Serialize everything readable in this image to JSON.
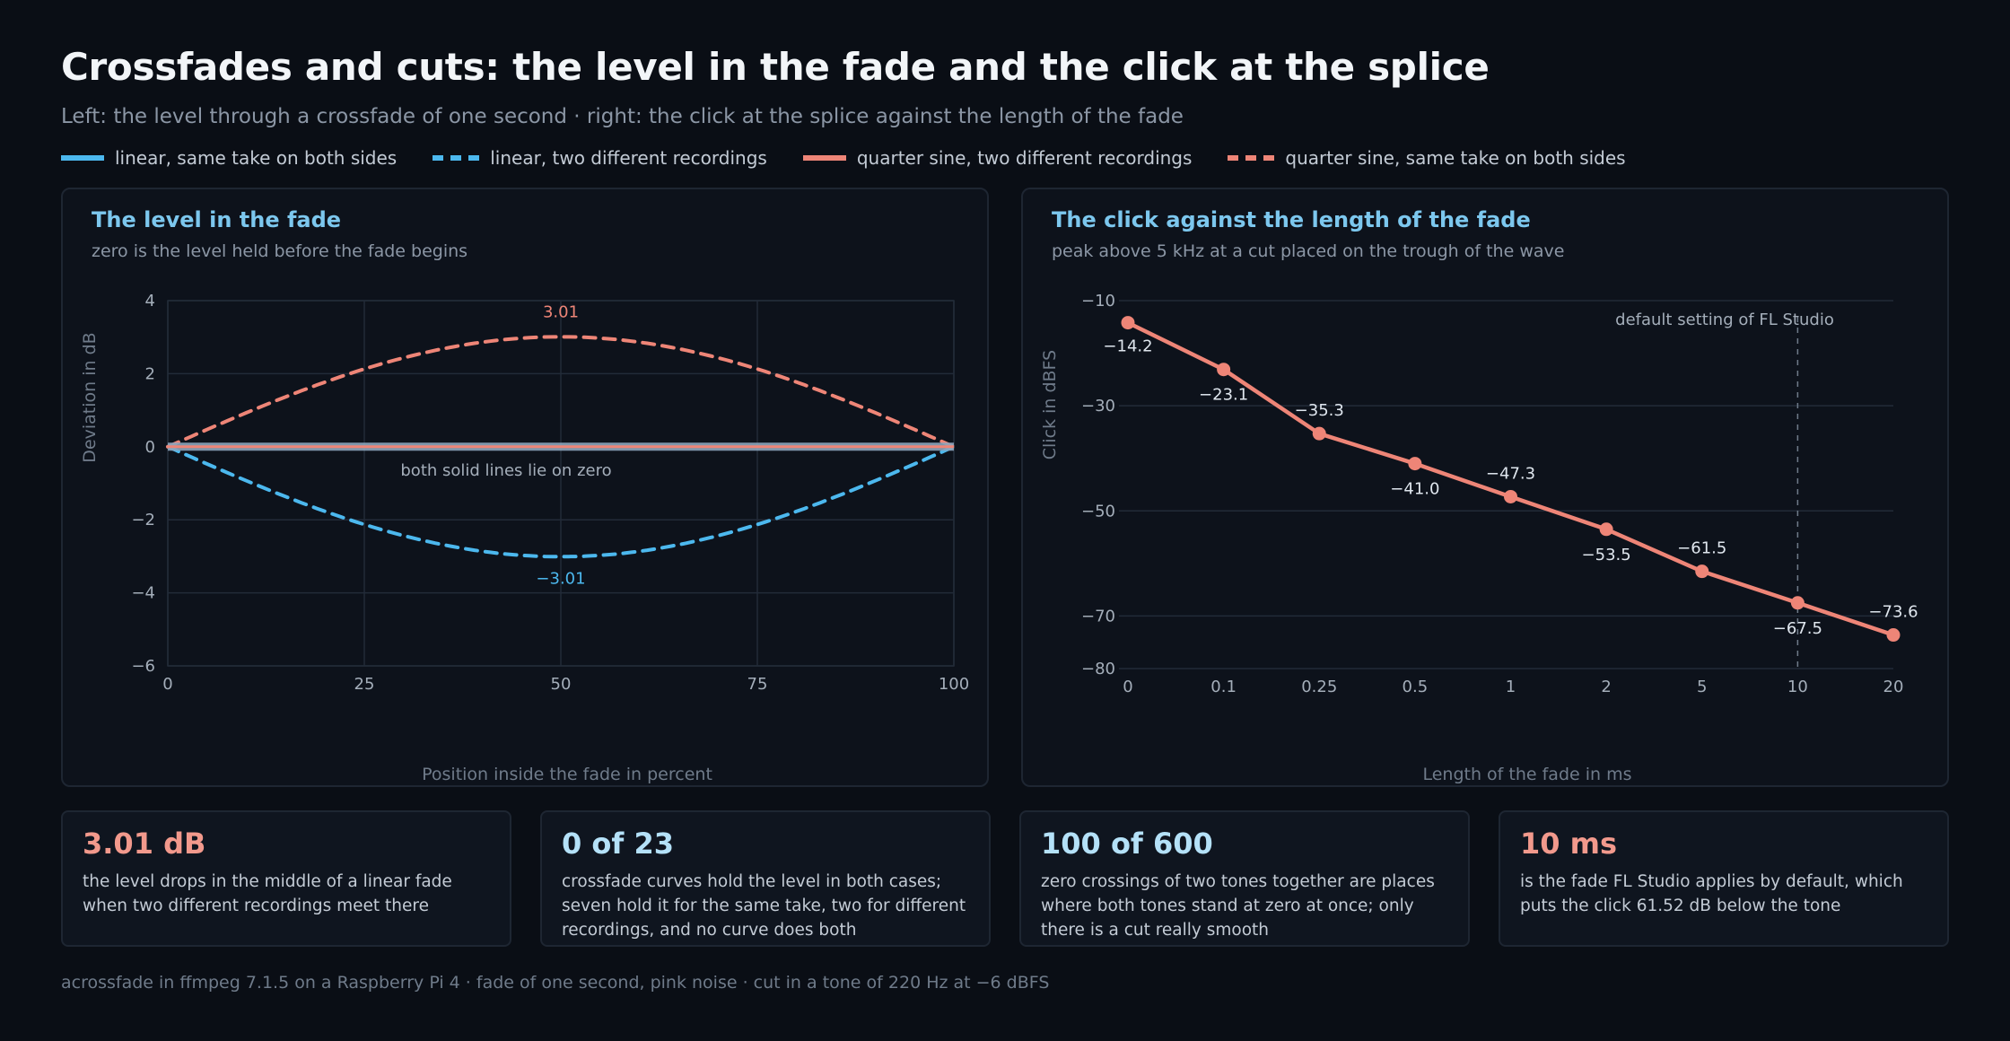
{
  "title": "Crossfades and cuts: the level in the fade and the click at the splice",
  "subtitle": "Left: the level through a crossfade of one second · right: the click at the splice against the length of the fade",
  "colors": {
    "blue": "#4cb8ee",
    "salmon": "#ee8577",
    "accent_title": "#7cc7ee",
    "card_value_salmon": "#f2998c",
    "card_value_light": "#b4e1f8"
  },
  "legend": [
    {
      "label": "linear, same take on both sides",
      "color": "#4cb8ee",
      "style": "solid"
    },
    {
      "label": "linear, two different recordings",
      "color": "#4cb8ee",
      "style": "dashed"
    },
    {
      "label": "quarter sine, two different recordings",
      "color": "#ee8577",
      "style": "solid"
    },
    {
      "label": "quarter sine, same take on both sides",
      "color": "#ee8577",
      "style": "dashed"
    }
  ],
  "left_panel": {
    "title": "The level in the fade",
    "subtitle": "zero is the level held before the fade begins",
    "annotation": "both solid lines lie on zero"
  },
  "right_panel": {
    "title": "The click against the length of the fade",
    "subtitle": "peak above 5 kHz at a cut placed on the trough of the wave",
    "marker_label": "default setting of FL Studio"
  },
  "chart_data": [
    {
      "type": "line",
      "title": "The level in the fade",
      "subtitle": "zero is the level held before the fade begins",
      "xlabel": "Position inside the fade in percent",
      "ylabel": "Deviation in dB",
      "xlim": [
        0,
        100
      ],
      "ylim": [
        -6,
        4
      ],
      "xticks": [
        0,
        25,
        50,
        75,
        100
      ],
      "yticks": [
        4,
        2,
        0,
        -2,
        -4,
        -6
      ],
      "grid": true,
      "series": [
        {
          "name": "linear, same take on both sides",
          "color": "#4cb8ee",
          "style": "solid",
          "x": [
            0,
            100
          ],
          "y": [
            0,
            0
          ]
        },
        {
          "name": "linear, two different recordings",
          "color": "#4cb8ee",
          "style": "dashed",
          "x": [
            0,
            10,
            20,
            30,
            40,
            50,
            60,
            70,
            80,
            90,
            100
          ],
          "y": [
            0,
            -0.92,
            -1.74,
            -2.39,
            -2.81,
            -3.01,
            -2.81,
            -2.39,
            -1.74,
            -0.92,
            0
          ],
          "peak_label": "−3.01",
          "peak_x": 50,
          "peak_y": -3.01
        },
        {
          "name": "quarter sine, two different recordings",
          "color": "#ee8577",
          "style": "solid",
          "x": [
            0,
            100
          ],
          "y": [
            0,
            0
          ]
        },
        {
          "name": "quarter sine, same take on both sides",
          "color": "#ee8577",
          "style": "dashed",
          "x": [
            0,
            10,
            20,
            30,
            40,
            50,
            60,
            70,
            80,
            90,
            100
          ],
          "y": [
            0,
            0.92,
            1.74,
            2.39,
            2.81,
            3.01,
            2.81,
            2.39,
            1.74,
            0.92,
            0
          ],
          "peak_label": "3.01",
          "peak_x": 50,
          "peak_y": 3.01
        }
      ],
      "annotation": "both solid lines lie on zero"
    },
    {
      "type": "line",
      "title": "The click against the length of the fade",
      "subtitle": "peak above 5 kHz at a cut placed on the trough of the wave",
      "xlabel": "Length of the fade in ms",
      "ylabel": "Click in dBFS",
      "categories": [
        "0",
        "0.1",
        "0.25",
        "0.5",
        "1",
        "2",
        "5",
        "10",
        "20"
      ],
      "ylim": [
        -80,
        -10
      ],
      "yticks": [
        -10,
        -30,
        -50,
        -70,
        -80
      ],
      "grid": true,
      "series": [
        {
          "color": "#ee8577",
          "values": [
            -14.2,
            -23.1,
            -35.3,
            -41.0,
            -47.3,
            -53.5,
            -61.5,
            -67.5,
            -73.6
          ],
          "labels": [
            "−14.2",
            "−23.1",
            "−35.3",
            "−41.0",
            "−47.3",
            "−53.5",
            "−61.5",
            "−67.5",
            "−73.6"
          ]
        }
      ],
      "marker": {
        "category": "10",
        "label": "default setting of FL Studio"
      }
    }
  ],
  "cards": [
    {
      "value": "3.01 dB",
      "text": "the level drops in the middle of a linear fade when two different recordings meet there",
      "color": "#f2998c"
    },
    {
      "value": "0 of 23",
      "text": "crossfade curves hold the level in both cases; seven hold it for the same take, two for different recordings, and no curve does both",
      "color": "#b4e1f8"
    },
    {
      "value": "100 of 600",
      "text": "zero crossings of two tones together are places where both tones stand at zero at once; only there is a cut really smooth",
      "color": "#b4e1f8"
    },
    {
      "value": "10 ms",
      "text": "is the fade FL Studio applies by default, which puts the click 61.52 dB below the tone",
      "color": "#f2998c"
    }
  ],
  "footer": "acrossfade in ffmpeg 7.1.5 on a Raspberry Pi 4 · fade of one second, pink noise · cut in a tone of 220 Hz at −6 dBFS"
}
